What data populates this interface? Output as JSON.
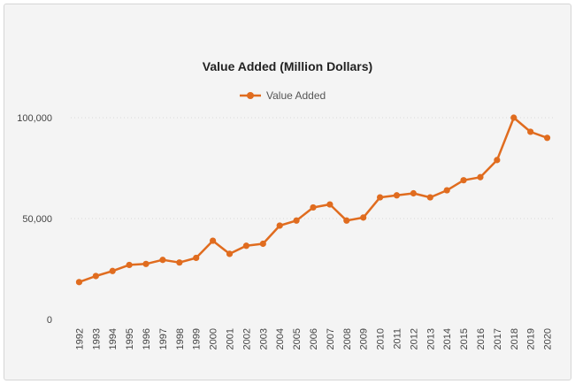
{
  "chart_data": {
    "type": "line",
    "title": "Value Added (Million Dollars)",
    "xlabel": "",
    "ylabel": "",
    "ylim": [
      0,
      100000
    ],
    "y_ticks": [
      0,
      50000,
      100000
    ],
    "y_tick_labels": [
      "0",
      "50,000",
      "100,000"
    ],
    "grid": true,
    "legend_position": "top-center",
    "colors": {
      "series": "#e06c1f"
    },
    "x": [
      1992,
      1993,
      1994,
      1995,
      1996,
      1997,
      1998,
      1999,
      2000,
      2001,
      2002,
      2003,
      2004,
      2005,
      2006,
      2007,
      2008,
      2009,
      2010,
      2011,
      2012,
      2013,
      2014,
      2015,
      2016,
      2017,
      2018,
      2019,
      2020
    ],
    "x_labels": [
      "1992",
      "1993",
      "1994",
      "1995",
      "1996",
      "1997",
      "1998",
      "1999",
      "2000",
      "2001",
      "2002",
      "2003",
      "2004",
      "2005",
      "2006",
      "2007",
      "2008",
      "2009",
      "2010",
      "2011",
      "2012",
      "2013",
      "2014",
      "2015",
      "2016",
      "2017",
      "2018",
      "2019",
      "2020"
    ],
    "series": [
      {
        "name": "Value Added",
        "values": [
          18500,
          21500,
          24000,
          27000,
          27500,
          29500,
          28200,
          30500,
          39000,
          32500,
          36500,
          37500,
          46500,
          49000,
          55500,
          57000,
          49000,
          50500,
          60500,
          61500,
          62500,
          60500,
          64000,
          69000,
          70500,
          79000,
          100000,
          93000,
          90000
        ]
      }
    ]
  }
}
